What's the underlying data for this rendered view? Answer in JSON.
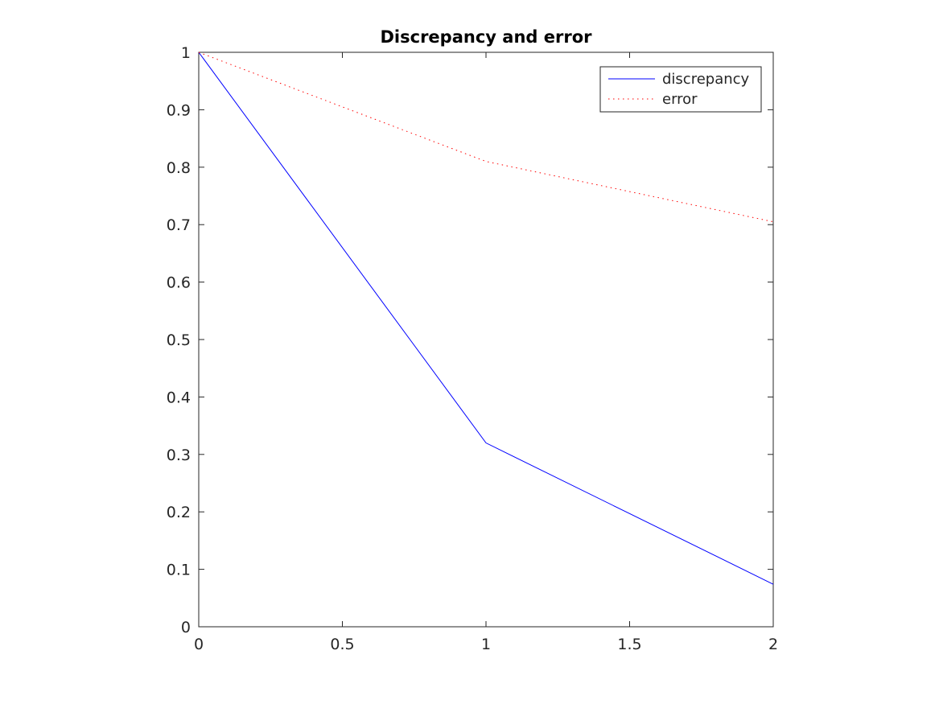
{
  "chart_data": {
    "type": "line",
    "title": "Discrepancy and error",
    "xlabel": "",
    "ylabel": "",
    "xlim": [
      0,
      2
    ],
    "ylim": [
      0,
      1
    ],
    "x_ticks": [
      0,
      0.5,
      1,
      1.5,
      2
    ],
    "x_tick_labels": [
      "0",
      "0.5",
      "1",
      "1.5",
      "2"
    ],
    "y_ticks": [
      0,
      0.1,
      0.2,
      0.3,
      0.4,
      0.5,
      0.6,
      0.7,
      0.8,
      0.9,
      1
    ],
    "y_tick_labels": [
      "0",
      "0.1",
      "0.2",
      "0.3",
      "0.4",
      "0.5",
      "0.6",
      "0.7",
      "0.8",
      "0.9",
      "1"
    ],
    "grid": false,
    "legend_position": "top-right",
    "series": [
      {
        "name": "discrepancy",
        "color": "#0000ff",
        "line_style": "solid",
        "x": [
          0,
          1,
          2
        ],
        "y": [
          1,
          0.32,
          0.074
        ]
      },
      {
        "name": "error",
        "color": "#ff0000",
        "line_style": "dotted",
        "x": [
          0,
          1,
          2
        ],
        "y": [
          1,
          0.81,
          0.705
        ]
      }
    ]
  }
}
